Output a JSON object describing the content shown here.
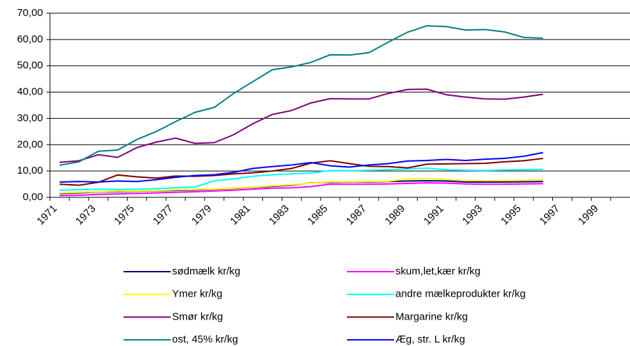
{
  "chart_data": {
    "type": "line",
    "categories": [
      "1971",
      null,
      "1973",
      null,
      "1975",
      null,
      "1977",
      null,
      "1979",
      null,
      "1981",
      null,
      "1983",
      null,
      "1985",
      null,
      "1987",
      null,
      "1989",
      null,
      "1991",
      null,
      "1993",
      null,
      "1995",
      null,
      "1997",
      null,
      "1999",
      null
    ],
    "series": [
      {
        "name": "sødmælk kr/kg",
        "color": "#000080",
        "values": [
          1.5,
          1.7,
          2,
          2.1,
          2.3,
          2.5,
          2.6,
          2.8,
          3.1,
          3.4,
          3.8,
          4.2,
          4.6,
          5.5,
          5.7,
          5.8,
          5.8,
          6,
          6.2,
          6.3,
          6.2,
          5.8,
          5.8,
          5.8,
          5.9,
          6,
          null,
          null,
          null,
          null
        ]
      },
      {
        "name": "skum,let,kær kr/kg",
        "color": "#ff00ff",
        "values": [
          0.7,
          0.8,
          1.1,
          1.3,
          1.5,
          1.7,
          1.9,
          2.1,
          2.4,
          2.7,
          3.1,
          3.5,
          3.6,
          4.1,
          5,
          5,
          5,
          5.1,
          5.3,
          5.5,
          5.4,
          5.1,
          5,
          5,
          5.1,
          5.2,
          null,
          null,
          null,
          null
        ]
      },
      {
        "name": "Ymer kr/kg",
        "color": "#ffff00",
        "values": [
          1.7,
          1.9,
          2.1,
          2.3,
          2.4,
          2.6,
          2.8,
          3,
          3.2,
          3.5,
          3.9,
          4.4,
          4.8,
          5.4,
          5.9,
          5.9,
          6,
          6.1,
          7,
          7.2,
          6.8,
          6.5,
          6.3,
          6.4,
          6.5,
          6.6,
          null,
          null,
          null,
          null
        ]
      },
      {
        "name": "andre mælkeprodukter kr/kg",
        "color": "#00ffff",
        "values": [
          2.7,
          2.9,
          3.1,
          2.9,
          3.1,
          3.3,
          3.6,
          3.9,
          6.3,
          7,
          8,
          8.6,
          8.9,
          9.2,
          10.2,
          10.1,
          10.3,
          10.5,
          10.8,
          11.1,
          10.5,
          10.3,
          10.2,
          10.4,
          10.5,
          10.6,
          null,
          null,
          null,
          null
        ]
      },
      {
        "name": "Smør kr/kg",
        "color": "#800080",
        "values": [
          13.3,
          13.9,
          16.2,
          15.2,
          18.9,
          21,
          22.5,
          20.5,
          20.8,
          23.8,
          28,
          31.5,
          33,
          35.9,
          37.5,
          37.4,
          37.4,
          39.5,
          41,
          41.1,
          39,
          38.1,
          37.4,
          37.3,
          38.1,
          39.2,
          null,
          null,
          null,
          null
        ]
      },
      {
        "name": "Margarine kr/kg",
        "color": "#800000",
        "values": [
          5,
          4.6,
          5.7,
          8.5,
          7.8,
          7.3,
          8.1,
          8,
          8.3,
          8.9,
          9.3,
          10,
          11,
          13,
          13.9,
          12.8,
          11.8,
          11.7,
          11.2,
          12.6,
          12.7,
          12.8,
          12.9,
          13.5,
          13.9,
          14.8,
          null,
          null,
          null,
          null
        ]
      },
      {
        "name": "ost, 45% kr/kg",
        "color": "#008080",
        "values": [
          12.2,
          13.5,
          17.5,
          18,
          22,
          25,
          28.8,
          32.3,
          34.2,
          39.5,
          44,
          48.5,
          49.6,
          51.3,
          54.2,
          54.1,
          55,
          59,
          62.8,
          65.2,
          64.9,
          63.6,
          63.8,
          62.9,
          60.8,
          60.5,
          null,
          null,
          null,
          null
        ]
      },
      {
        "name": "Æg, str. L kr/kg",
        "color": "#0000ff",
        "values": [
          5.8,
          6,
          5.8,
          6.2,
          6,
          6.7,
          7.6,
          8.3,
          8.6,
          9.5,
          11,
          11.7,
          12.3,
          13.2,
          12,
          11.5,
          12.3,
          12.8,
          13.8,
          14,
          14.4,
          14,
          14.5,
          14.8,
          15.6,
          17,
          null,
          null,
          null,
          null
        ]
      }
    ],
    "ylim": [
      0,
      70
    ],
    "yticks": [
      {
        "value": 0,
        "label": "0,00"
      },
      {
        "value": 10,
        "label": "10,00"
      },
      {
        "value": 20,
        "label": "20,00"
      },
      {
        "value": 30,
        "label": "30,00"
      },
      {
        "value": 40,
        "label": "40,00"
      },
      {
        "value": 50,
        "label": "50,00"
      },
      {
        "value": 60,
        "label": "60,00"
      },
      {
        "value": 70,
        "label": "70,00"
      }
    ],
    "grid": true,
    "legend": "bottom"
  }
}
